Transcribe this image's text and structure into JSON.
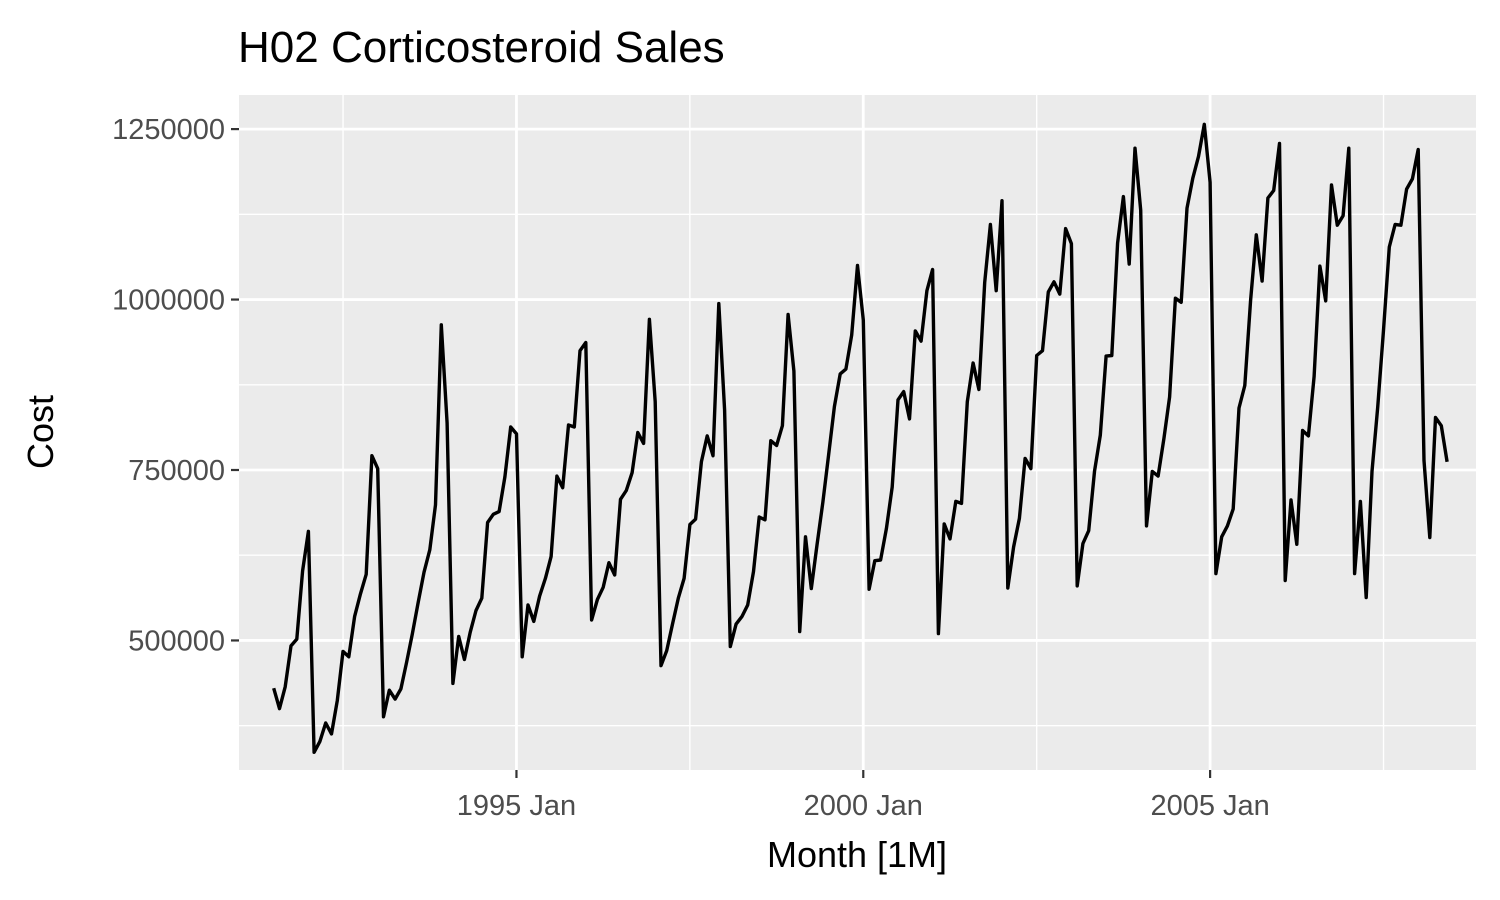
{
  "chart_data": {
    "type": "line",
    "title": "H02 Corticosteroid Sales",
    "xlabel": "Month [1M]",
    "ylabel": "Cost",
    "x_ticks": [
      {
        "label": "1995 Jan",
        "year": 1995
      },
      {
        "label": "2000 Jan",
        "year": 2000
      },
      {
        "label": "2005 Jan",
        "year": 2005
      }
    ],
    "y_ticks": [
      {
        "label": "500000",
        "value": 500000
      },
      {
        "label": "750000",
        "value": 750000
      },
      {
        "label": "1000000",
        "value": 1000000
      },
      {
        "label": "1250000",
        "value": 1250000
      }
    ],
    "xlim": [
      "1991-01",
      "2008-11"
    ],
    "ylim": [
      310000,
      1300000
    ],
    "grid": true,
    "colors": {
      "panel": "#EBEBEB",
      "grid": "#FFFFFF",
      "line": "#000000",
      "tick_text": "#4D4D4D"
    },
    "series": [
      {
        "start": "1991-07",
        "values": [
          430000,
          400000,
          432000,
          492000,
          502000,
          602000,
          660000,
          336000,
          352000,
          379000,
          363000,
          412000,
          484000,
          476000,
          535000,
          568000,
          597000,
          771000,
          752000,
          388000,
          427000,
          414000,
          429000,
          468000,
          510000,
          556000,
          600000,
          633000,
          699000,
          963000,
          819000,
          437000,
          506000,
          472000,
          512000,
          544000,
          562000,
          673000,
          685000,
          689000,
          740000,
          813000,
          803000,
          476000,
          552000,
          528000,
          565000,
          591000,
          623000,
          741000,
          724000,
          816000,
          813000,
          925000,
          937000,
          530000,
          560000,
          578000,
          614000,
          596000,
          707000,
          720000,
          746000,
          805000,
          789000,
          971000,
          850000,
          463000,
          485000,
          524000,
          562000,
          591000,
          670000,
          678000,
          762000,
          800000,
          771000,
          994000,
          838000,
          491000,
          524000,
          535000,
          552000,
          601000,
          681000,
          677000,
          793000,
          786000,
          815000,
          978000,
          895000,
          513000,
          652000,
          576000,
          640000,
          702000,
          772000,
          843000,
          891000,
          898000,
          948000,
          1050000,
          970000,
          575000,
          617000,
          618000,
          664000,
          725000,
          853000,
          865000,
          825000,
          954000,
          939000,
          1013000,
          1044000,
          510000,
          671000,
          649000,
          704000,
          701000,
          850000,
          907000,
          868000,
          1025000,
          1110000,
          1013000,
          1145000,
          577000,
          637000,
          679000,
          767000,
          752000,
          918000,
          925000,
          1011000,
          1026000,
          1008000,
          1104000,
          1082000,
          580000,
          642000,
          661000,
          748000,
          801000,
          917000,
          918000,
          1083000,
          1151000,
          1052000,
          1222000,
          1131000,
          668000,
          748000,
          741000,
          796000,
          857000,
          1002000,
          996000,
          1134000,
          1178000,
          1210000,
          1257000,
          1172000,
          598000,
          652000,
          668000,
          693000,
          841000,
          874000,
          999000,
          1095000,
          1027000,
          1149000,
          1160000,
          1229000,
          588000,
          706000,
          641000,
          808000,
          800000,
          887000,
          1049000,
          998000,
          1168000,
          1109000,
          1123000,
          1222000,
          598000,
          704000,
          563000,
          748000,
          842000,
          955000,
          1077000,
          1110000,
          1109000,
          1162000,
          1177000,
          1220000,
          764000,
          651000,
          827000,
          815000,
          762000
        ]
      }
    ]
  }
}
